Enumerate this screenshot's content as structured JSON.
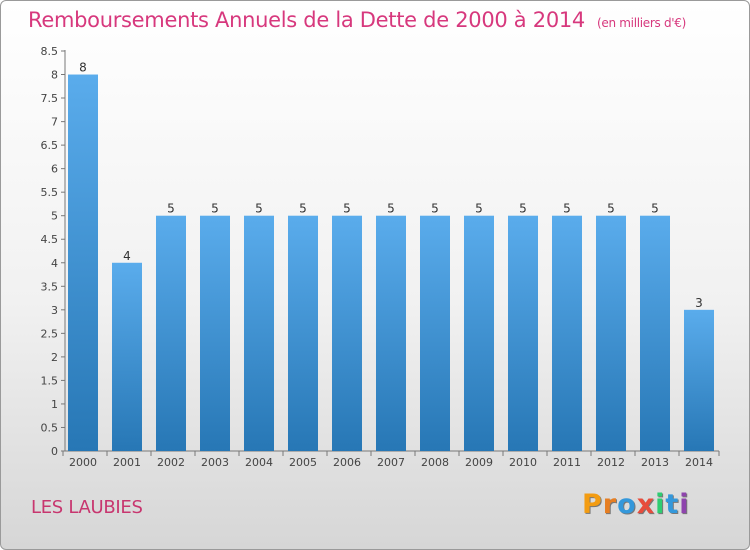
{
  "header": {
    "title": "Remboursements Annuels de la Dette de 2000 à 2014",
    "unit": "(en milliers d'€)"
  },
  "footer": {
    "commune": "LES LAUBIES",
    "brand": "Proxiti"
  },
  "colors": {
    "title": "#d7387d",
    "bar_top": "#5aacec",
    "bar_bottom": "#2777b5",
    "brand_letters": [
      "#f39c12",
      "#e67e22",
      "#3498db",
      "#e74c3c",
      "#2ecc71",
      "#3498db",
      "#8e44ad"
    ]
  },
  "chart_data": {
    "type": "bar",
    "title": "Remboursements Annuels de la Dette de 2000 à 2014",
    "categories": [
      "2000",
      "2001",
      "2002",
      "2003",
      "2004",
      "2005",
      "2006",
      "2007",
      "2008",
      "2009",
      "2010",
      "2011",
      "2012",
      "2013",
      "2014"
    ],
    "values": [
      8,
      4,
      5,
      5,
      5,
      5,
      5,
      5,
      5,
      5,
      5,
      5,
      5,
      5,
      3
    ],
    "ylim": [
      0,
      8.5
    ],
    "yticks": [
      "0",
      "0.5",
      "1",
      "1.5",
      "2",
      "2.5",
      "3",
      "3.5",
      "4",
      "4.5",
      "5",
      "5.5",
      "6",
      "6.5",
      "7",
      "7.5",
      "8",
      "8.5"
    ],
    "grid": false
  }
}
